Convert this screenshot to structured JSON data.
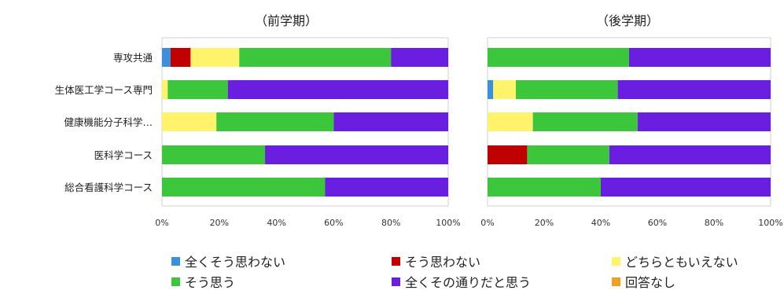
{
  "chart_data": [
    {
      "type": "bar",
      "orientation": "horizontal-stacked-100",
      "title": "（前学期）",
      "categories": [
        "専攻共通",
        "生体医工学コース専門",
        "健康機能分子科学…",
        "医科学コース",
        "総合看護科学コース"
      ],
      "series": [
        {
          "name": "全くそう思わない",
          "color": "#3b8fdc",
          "values": [
            3,
            0,
            0,
            0,
            0
          ]
        },
        {
          "name": "そう思わない",
          "color": "#c00000",
          "values": [
            7,
            0,
            0,
            0,
            0
          ]
        },
        {
          "name": "どちらともいえない",
          "color": "#fff36b",
          "values": [
            17,
            2,
            19,
            0,
            0
          ]
        },
        {
          "name": "そう思う",
          "color": "#3cc63c",
          "values": [
            53,
            21,
            41,
            36,
            57
          ]
        },
        {
          "name": "全くその通りだと思う",
          "color": "#6a1ee0",
          "values": [
            20,
            77,
            40,
            64,
            43
          ]
        },
        {
          "name": "回答なし",
          "color": "#f0a020",
          "values": [
            0,
            0,
            0,
            0,
            0
          ]
        }
      ],
      "xlim": [
        0,
        100
      ],
      "ticks": [
        "0%",
        "20%",
        "40%",
        "60%",
        "80%",
        "100%"
      ]
    },
    {
      "type": "bar",
      "orientation": "horizontal-stacked-100",
      "title": "（後学期）",
      "categories": [
        "専攻共通",
        "生体医工学コース専門",
        "健康機能分子科学…",
        "医科学コース",
        "総合看護科学コース"
      ],
      "series": [
        {
          "name": "全くそう思わない",
          "color": "#3b8fdc",
          "values": [
            0,
            2,
            0,
            0,
            0
          ]
        },
        {
          "name": "そう思わない",
          "color": "#c00000",
          "values": [
            0,
            0,
            0,
            14,
            0
          ]
        },
        {
          "name": "どちらともいえない",
          "color": "#fff36b",
          "values": [
            0,
            8,
            16,
            0,
            0
          ]
        },
        {
          "name": "そう思う",
          "color": "#3cc63c",
          "values": [
            50,
            36,
            37,
            29,
            40
          ]
        },
        {
          "name": "全くその通りだと思う",
          "color": "#6a1ee0",
          "values": [
            50,
            54,
            47,
            57,
            60
          ]
        },
        {
          "name": "回答なし",
          "color": "#f0a020",
          "values": [
            0,
            0,
            0,
            0,
            0
          ]
        }
      ],
      "xlim": [
        0,
        100
      ],
      "ticks": [
        "0%",
        "20%",
        "40%",
        "60%",
        "80%",
        "100%"
      ]
    }
  ],
  "legend": {
    "items": [
      {
        "label": "全くそう思わない",
        "color": "#3b8fdc"
      },
      {
        "label": "そう思わない",
        "color": "#c00000"
      },
      {
        "label": "どちらともいえない",
        "color": "#fff36b"
      },
      {
        "label": "そう思う",
        "color": "#3cc63c"
      },
      {
        "label": "全くその通りだと思う",
        "color": "#6a1ee0"
      },
      {
        "label": "回答なし",
        "color": "#f0a020"
      }
    ]
  }
}
